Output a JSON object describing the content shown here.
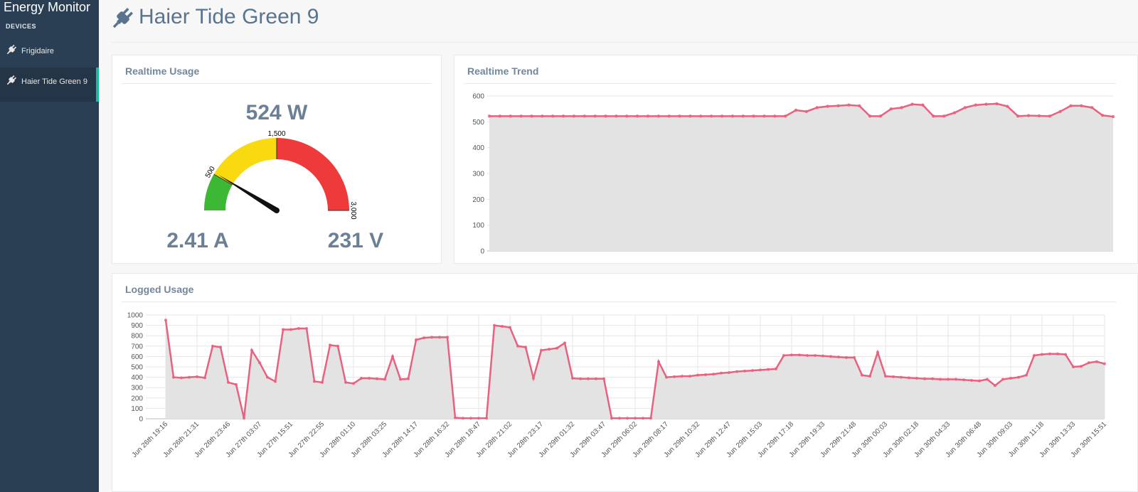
{
  "sidebar": {
    "brand": "Energy Monitor",
    "section": "DEVICES",
    "devices": [
      "Frigidaire",
      "Haier Tide Green 9"
    ]
  },
  "header": {
    "title": "Haier Tide Green 9"
  },
  "panels": {
    "realtime_usage": "Realtime Usage",
    "realtime_trend": "Realtime Trend",
    "logged_usage": "Logged Usage"
  },
  "readings": {
    "current": "2.41 A",
    "voltage": "231 V"
  },
  "chart_data": [
    {
      "type": "gauge",
      "values": [
        524
      ],
      "value_labels": [
        "524 W"
      ],
      "ylim": [
        0,
        3000
      ],
      "yticks": [
        500,
        {
          "value": 1500,
          "label": "1,500"
        },
        {
          "value": 3000,
          "label": "3,000"
        }
      ],
      "bands": [
        {
          "from": 0,
          "to": 500,
          "color": "#3db834"
        },
        {
          "from": 500,
          "to": 1500,
          "color": "#f9d90f"
        },
        {
          "from": 1500,
          "to": 3000,
          "color": "#ee3a3a"
        }
      ],
      "needle_color": "#111111"
    },
    {
      "type": "area",
      "color": "#e8617f",
      "fill": "#e3e3e3",
      "markers": true,
      "grid": true,
      "ylim": [
        0,
        600
      ],
      "yticks": [
        0,
        100,
        200,
        300,
        400,
        500,
        600
      ],
      "values": [
        522,
        522,
        522,
        522,
        522,
        522,
        522,
        522,
        522,
        522,
        522,
        522,
        522,
        522,
        522,
        522,
        522,
        522,
        522,
        522,
        522,
        522,
        522,
        522,
        522,
        522,
        522,
        522,
        522,
        545,
        540,
        555,
        560,
        562,
        565,
        562,
        522,
        522,
        550,
        555,
        568,
        565,
        522,
        522,
        535,
        555,
        565,
        568,
        570,
        560,
        522,
        524,
        523,
        522,
        540,
        562,
        562,
        555,
        525,
        520
      ]
    },
    {
      "type": "area",
      "color": "#e8617f",
      "fill": "#e3e3e3",
      "markers": true,
      "grid": true,
      "ylim": [
        0,
        1000
      ],
      "yticks": [
        0,
        100,
        200,
        300,
        400,
        500,
        600,
        700,
        800,
        900,
        1000
      ],
      "categories": [
        "Jun 26th 19:16",
        null,
        null,
        null,
        "Jun 26th 21:31",
        null,
        null,
        null,
        "Jun 26th 23:46",
        null,
        null,
        null,
        "Jun 27th 03:07",
        null,
        null,
        null,
        "Jun 27th 15:51",
        null,
        null,
        null,
        "Jun 27th 22:55",
        null,
        null,
        null,
        "Jun 28th 01:10",
        null,
        null,
        null,
        "Jun 28th 03:25",
        null,
        null,
        null,
        "Jun 28th 14:17",
        null,
        null,
        null,
        "Jun 28th 16:32",
        null,
        null,
        null,
        "Jun 28th 18:47",
        null,
        null,
        null,
        "Jun 28th 21:02",
        null,
        null,
        null,
        "Jun 28th 23:17",
        null,
        null,
        null,
        "Jun 29th 01:32",
        null,
        null,
        null,
        "Jun 29th 03:47",
        null,
        null,
        null,
        "Jun 29th 06:02",
        null,
        null,
        null,
        "Jun 29th 08:17",
        null,
        null,
        null,
        "Jun 29th 10:32",
        null,
        null,
        null,
        "Jun 29th 12:47",
        null,
        null,
        null,
        "Jun 29th 15:03",
        null,
        null,
        null,
        "Jun 29th 17:18",
        null,
        null,
        null,
        "Jun 29th 19:33",
        null,
        null,
        null,
        "Jun 29th 21:48",
        null,
        null,
        null,
        "Jun 30th 00:03",
        null,
        null,
        null,
        "Jun 30th 02:18",
        null,
        null,
        null,
        "Jun 30th 04:33",
        null,
        null,
        null,
        "Jun 30th 06:48",
        null,
        null,
        null,
        "Jun 30th 09:03",
        null,
        null,
        null,
        "Jun 30th 11:18",
        null,
        null,
        null,
        "Jun 30th 13:33",
        null,
        null,
        null,
        "Jun 30th 15:51"
      ],
      "values": [
        950,
        400,
        395,
        400,
        405,
        395,
        700,
        690,
        350,
        330,
        5,
        660,
        540,
        400,
        360,
        860,
        860,
        870,
        870,
        360,
        350,
        710,
        700,
        350,
        340,
        390,
        390,
        385,
        380,
        600,
        380,
        385,
        760,
        780,
        785,
        785,
        785,
        10,
        5,
        5,
        5,
        5,
        900,
        890,
        880,
        700,
        690,
        390,
        660,
        670,
        680,
        730,
        390,
        385,
        385,
        385,
        385,
        5,
        5,
        5,
        5,
        5,
        5,
        550,
        400,
        405,
        410,
        410,
        420,
        425,
        430,
        440,
        445,
        455,
        460,
        465,
        470,
        475,
        480,
        610,
        615,
        615,
        610,
        610,
        605,
        600,
        595,
        590,
        590,
        420,
        410,
        640,
        410,
        405,
        400,
        395,
        390,
        385,
        385,
        380,
        380,
        380,
        375,
        370,
        365,
        380,
        320,
        380,
        390,
        400,
        420,
        610,
        620,
        625,
        625,
        620,
        500,
        505,
        540,
        550,
        530
      ]
    }
  ]
}
